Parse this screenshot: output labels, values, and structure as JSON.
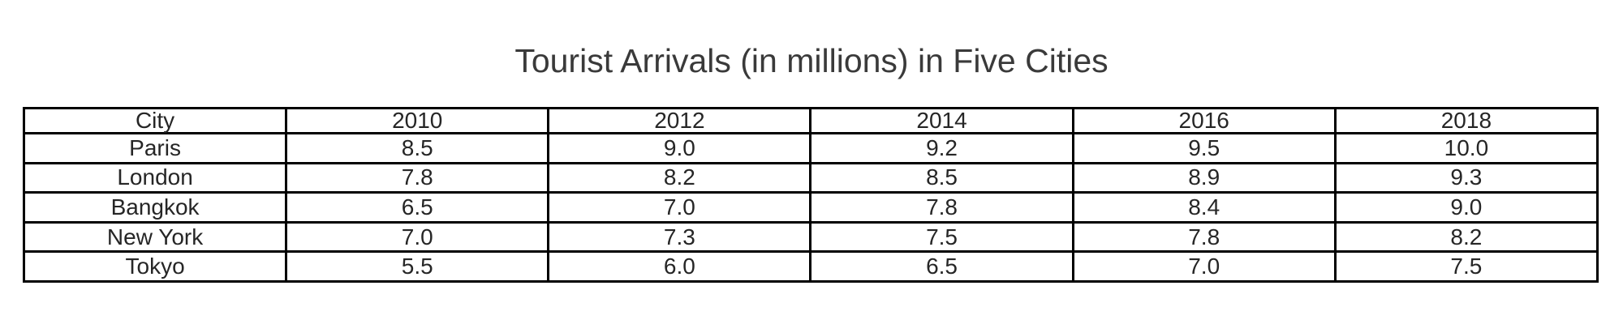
{
  "title": "Tourist Arrivals (in millions) in Five Cities",
  "colors": {
    "background": "#ffffff",
    "title_text": "#3a3a3a",
    "table_text": "#262626",
    "border": "#000000"
  },
  "table": {
    "columns": [
      "City",
      "2010",
      "2012",
      "2014",
      "2016",
      "2018"
    ],
    "rows": [
      {
        "city": "Paris",
        "values": [
          "8.5",
          "9.0",
          "9.2",
          "9.5",
          "10.0"
        ]
      },
      {
        "city": "London",
        "values": [
          "7.8",
          "8.2",
          "8.5",
          "8.9",
          "9.3"
        ]
      },
      {
        "city": "Bangkok",
        "values": [
          "6.5",
          "7.0",
          "7.8",
          "8.4",
          "9.0"
        ]
      },
      {
        "city": "New York",
        "values": [
          "7.0",
          "7.3",
          "7.5",
          "7.8",
          "8.2"
        ]
      },
      {
        "city": "Tokyo",
        "values": [
          "5.5",
          "6.0",
          "6.5",
          "7.0",
          "7.5"
        ]
      }
    ]
  },
  "chart_data": {
    "type": "table",
    "title": "Tourist Arrivals (in millions) in Five Cities",
    "categories": [
      "2010",
      "2012",
      "2014",
      "2016",
      "2018"
    ],
    "row_header_label": "City",
    "unit": "millions of tourist arrivals",
    "series": [
      {
        "name": "Paris",
        "values": [
          8.5,
          9.0,
          9.2,
          9.5,
          10.0
        ]
      },
      {
        "name": "London",
        "values": [
          7.8,
          8.2,
          8.5,
          8.9,
          9.3
        ]
      },
      {
        "name": "Bangkok",
        "values": [
          6.5,
          7.0,
          7.8,
          8.4,
          9.0
        ]
      },
      {
        "name": "New York",
        "values": [
          7.0,
          7.3,
          7.5,
          7.8,
          8.2
        ]
      },
      {
        "name": "Tokyo",
        "values": [
          5.5,
          6.0,
          6.5,
          7.0,
          7.5
        ]
      }
    ]
  }
}
